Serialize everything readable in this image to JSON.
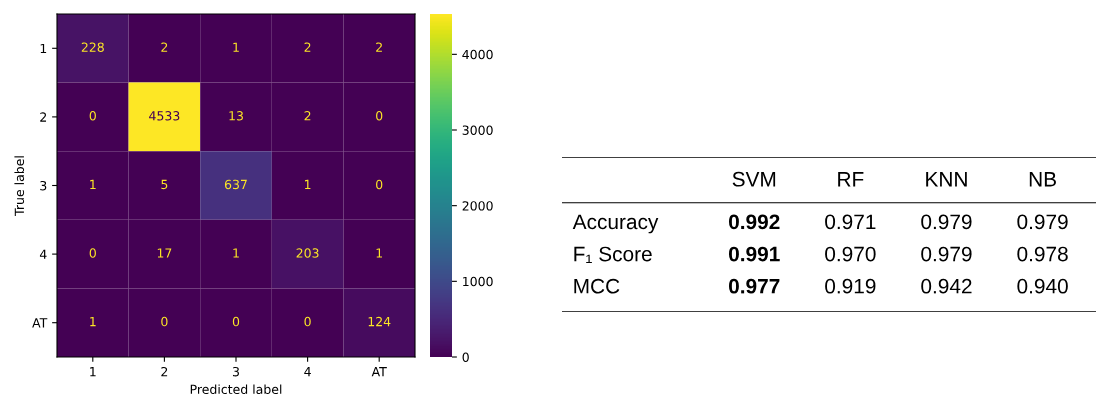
{
  "chart_data": [
    {
      "type": "heatmap",
      "xlabel": "Predicted label",
      "ylabel": "True label",
      "categories": [
        "1",
        "2",
        "3",
        "4",
        "AT"
      ],
      "y_categories": [
        "1",
        "2",
        "3",
        "4",
        "AT"
      ],
      "cells": [
        [
          228,
          2,
          1,
          2,
          2
        ],
        [
          0,
          4533,
          13,
          2,
          0
        ],
        [
          1,
          5,
          637,
          1,
          0
        ],
        [
          0,
          17,
          1,
          203,
          1
        ],
        [
          1,
          0,
          0,
          0,
          124
        ]
      ],
      "data_labels": true,
      "clim": [
        0,
        4533
      ],
      "cticks": [
        0,
        1000,
        2000,
        3000,
        4000
      ]
    },
    {
      "type": "other",
      "categories": [
        "SVM",
        "RF",
        "KNN",
        "NB"
      ],
      "y_categories": [
        "Accuracy",
        "F₁ Score",
        "MCC"
      ],
      "cell_labels": [
        [
          "0.992",
          "0.971",
          "0.979",
          "0.979"
        ],
        [
          "0.991",
          "0.970",
          "0.979",
          "0.978"
        ],
        [
          "0.977",
          "0.919",
          "0.942",
          "0.940"
        ]
      ]
    }
  ]
}
